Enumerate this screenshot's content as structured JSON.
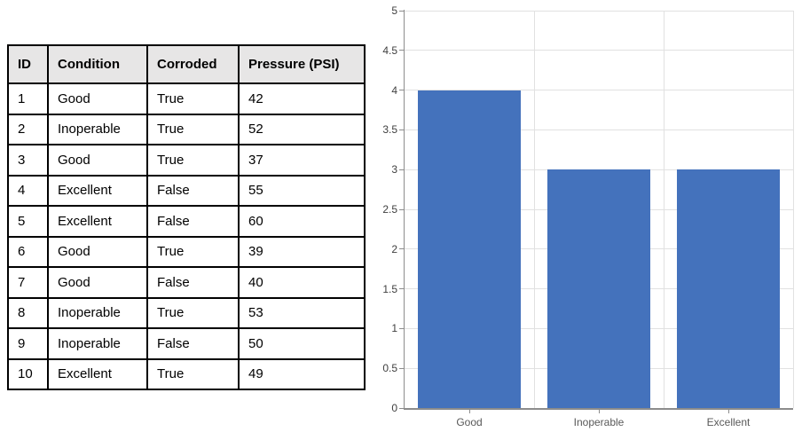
{
  "page": {
    "background": "#FFFFFF"
  },
  "table": {
    "columns": [
      "ID",
      "Condition",
      "Corroded",
      "Pressure (PSI)"
    ],
    "rows": [
      [
        "1",
        "Good",
        "True",
        "42"
      ],
      [
        "2",
        "Inoperable",
        "True",
        "52"
      ],
      [
        "3",
        "Good",
        "True",
        "37"
      ],
      [
        "4",
        "Excellent",
        "False",
        "55"
      ],
      [
        "5",
        "Excellent",
        "False",
        "60"
      ],
      [
        "6",
        "Good",
        "True",
        "39"
      ],
      [
        "7",
        "Good",
        "False",
        "40"
      ],
      [
        "8",
        "Inoperable",
        "True",
        "53"
      ],
      [
        "9",
        "Inoperable",
        "False",
        "50"
      ],
      [
        "10",
        "Excellent",
        "True",
        "49"
      ]
    ],
    "header_bg": "#E7E6E6",
    "border_color": "#000000"
  },
  "chart_data": {
    "type": "bar",
    "categories": [
      "Good",
      "Inoperable",
      "Excellent"
    ],
    "values": [
      4,
      3,
      3
    ],
    "title": "",
    "xlabel": "",
    "ylabel": "",
    "ylim": [
      0,
      5
    ],
    "ytick_step": 0.5,
    "ytick_labels": [
      "0",
      "0.5",
      "1",
      "1.5",
      "2",
      "2.5",
      "3",
      "3.5",
      "4",
      "4.5",
      "5"
    ],
    "grid": true,
    "legend": "none",
    "bar_color": "#4472BC",
    "gridline_color": "#E1E1E1",
    "axis_color": "#8C8C8C",
    "ytick_label_color": "#3F3F3F",
    "xtick_label_color": "#595959"
  }
}
